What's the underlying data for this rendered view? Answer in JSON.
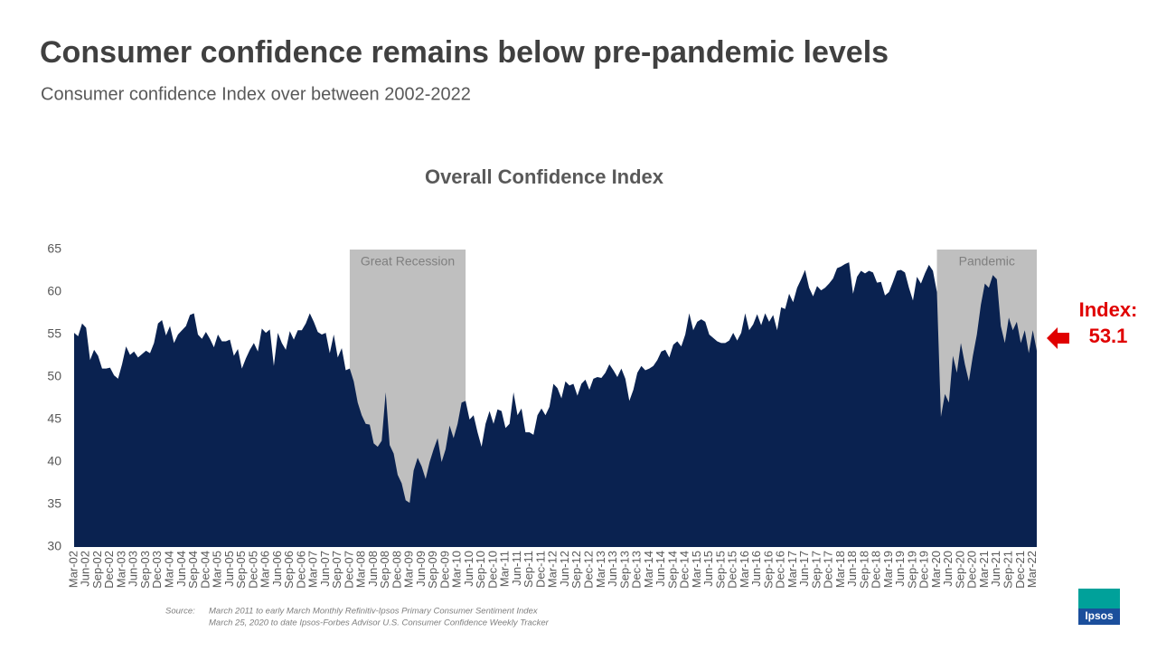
{
  "header": {
    "title": "Consumer confidence remains below pre-pandemic levels",
    "subtitle": "Consumer confidence Index over between 2002-2022"
  },
  "chart_data": {
    "type": "area",
    "title": "Overall Confidence Index",
    "color": "#0a2250",
    "categories": [
      "Mar-02",
      null,
      null,
      "Jun-02",
      null,
      null,
      "Sep-02",
      null,
      null,
      "Dec-02",
      null,
      null,
      "Mar-03",
      null,
      null,
      "Jun-03",
      null,
      null,
      "Sep-03",
      null,
      null,
      "Dec-03",
      null,
      null,
      "Mar-04",
      null,
      null,
      "Jun-04",
      null,
      null,
      "Sep-04",
      null,
      null,
      "Dec-04",
      null,
      null,
      "Mar-05",
      null,
      null,
      "Jun-05",
      null,
      null,
      "Sep-05",
      null,
      null,
      "Dec-05",
      null,
      null,
      "Mar-06",
      null,
      null,
      "Jun-06",
      null,
      null,
      "Sep-06",
      null,
      null,
      "Dec-06",
      null,
      null,
      "Mar-07",
      null,
      null,
      "Jun-07",
      null,
      null,
      "Sep-07",
      null,
      null,
      "Dec-07",
      null,
      null,
      "Mar-08",
      null,
      null,
      "Jun-08",
      null,
      null,
      "Sep-08",
      null,
      null,
      "Dec-08",
      null,
      null,
      "Mar-09",
      null,
      null,
      "Jun-09",
      null,
      null,
      "Sep-09",
      null,
      null,
      "Dec-09",
      null,
      null,
      "Mar-10",
      null,
      null,
      "Jun-10",
      null,
      null,
      "Sep-10",
      null,
      null,
      "Dec-10",
      null,
      null,
      "Mar-11",
      null,
      null,
      "Jun-11",
      null,
      null,
      "Sep-11",
      null,
      null,
      "Dec-11",
      null,
      null,
      "Mar-12",
      null,
      null,
      "Jun-12",
      null,
      null,
      "Sep-12",
      null,
      null,
      "Dec-12",
      null,
      null,
      "Mar-13",
      null,
      null,
      "Jun-13",
      null,
      null,
      "Sep-13",
      null,
      null,
      "Dec-13",
      null,
      null,
      "Mar-14",
      null,
      null,
      "Jun-14",
      null,
      null,
      "Sep-14",
      null,
      null,
      "Dec-14",
      null,
      null,
      "Mar-15",
      null,
      null,
      "Jun-15",
      null,
      null,
      "Sep-15",
      null,
      null,
      "Dec-15",
      null,
      null,
      "Mar-16",
      null,
      null,
      "Jun-16",
      null,
      null,
      "Sep-16",
      null,
      null,
      "Dec-16",
      null,
      null,
      "Mar-17",
      null,
      null,
      "Jun-17",
      null,
      null,
      "Sep-17",
      null,
      null,
      "Dec-17",
      null,
      null,
      "Mar-18",
      null,
      null,
      "Jun-18",
      null,
      null,
      "Sep-18",
      null,
      null,
      "Dec-18",
      null,
      null,
      "Mar-19",
      null,
      null,
      "Jun-19",
      null,
      null,
      "Sep-19",
      null,
      null,
      "Dec-19",
      null,
      null,
      "Mar-20",
      null,
      null,
      "Jun-20",
      null,
      null,
      "Sep-20",
      null,
      null,
      "Dec-20",
      null,
      null,
      "Mar-21",
      null,
      null,
      "Jun-21",
      null,
      null,
      "Sep-21",
      null,
      null,
      "Dec-21",
      null,
      null,
      "Mar-22",
      null
    ],
    "values": [
      55.2,
      54.8,
      56.3,
      55.8,
      52,
      53.2,
      52.5,
      51,
      51,
      51.1,
      50.2,
      49.8,
      51.5,
      53.6,
      52.6,
      53,
      52.3,
      52.7,
      53.1,
      52.8,
      54,
      56.3,
      56.7,
      54.9,
      56,
      54,
      55,
      55.5,
      56,
      57.3,
      57.5,
      55,
      54.5,
      55.3,
      54.5,
      53.5,
      55,
      54.2,
      54.2,
      54.4,
      52.5,
      53.3,
      51,
      52.2,
      53.2,
      54,
      53,
      55.7,
      55.2,
      55.6,
      51.3,
      55.2,
      54,
      53.2,
      55.4,
      54.4,
      55.5,
      55.5,
      56.3,
      57.5,
      56.5,
      55.3,
      55,
      55.2,
      52.8,
      55,
      52.3,
      53.4,
      50.8,
      51,
      49.5,
      47,
      45.5,
      44.5,
      44.4,
      42.2,
      41.8,
      42.5,
      48.2,
      42,
      41,
      38.5,
      37.5,
      35.5,
      35.2,
      39,
      40.5,
      39.5,
      38,
      40,
      41.5,
      42.8,
      40,
      41.5,
      44.3,
      42.8,
      44.5,
      47,
      47.2,
      45,
      45.5,
      43.5,
      41.8,
      44.5,
      46,
      44.5,
      46.2,
      46,
      44,
      44.5,
      48.2,
      45.5,
      46.3,
      43.5,
      43.5,
      43.2,
      45.5,
      46.3,
      45.5,
      46.5,
      49.2,
      48.7,
      47.5,
      49.5,
      49,
      49.2,
      47.8,
      49.2,
      49.7,
      48.5,
      49.8,
      50,
      49.9,
      50.5,
      51.5,
      50.8,
      50,
      51,
      49.8,
      47.2,
      48.5,
      50.5,
      51.3,
      50.8,
      51,
      51.3,
      52,
      53,
      53.2,
      52.3,
      53.8,
      54.2,
      53.6,
      55,
      57.5,
      55.5,
      56.5,
      56.8,
      56.5,
      55,
      54.6,
      54.2,
      54,
      54,
      54.3,
      55.2,
      54.3,
      55.2,
      57.5,
      55.5,
      56.2,
      57.4,
      56.1,
      57.5,
      56.5,
      57.3,
      55.5,
      58.2,
      58,
      59.8,
      58.8,
      60.5,
      61.5,
      62.6,
      60.5,
      59.5,
      60.7,
      60.2,
      60.5,
      61,
      61.6,
      62.8,
      63,
      63.3,
      63.5,
      59.8,
      61.8,
      62.5,
      62.2,
      62.5,
      62.3,
      61.1,
      61.2,
      59.6,
      60,
      61.2,
      62.5,
      62.6,
      62.3,
      60.5,
      59,
      61.8,
      61,
      62.2,
      63.2,
      62.5,
      60,
      45.3,
      48,
      47,
      52.5,
      50.5,
      54,
      51.5,
      49.5,
      52.5,
      55,
      58.5,
      61,
      60.5,
      62,
      61.5,
      56,
      54,
      57,
      55.5,
      56.5,
      54,
      55.5,
      52.8,
      55.5,
      53.1
    ],
    "ylim": [
      30,
      65
    ],
    "yticks": [
      30,
      35,
      40,
      45,
      50,
      55,
      60,
      65
    ],
    "grid": false,
    "shaded_regions": [
      {
        "label": "Great Recession",
        "start": 69,
        "end": 98,
        "color": "#bfbfbf"
      },
      {
        "label": "Pandemic",
        "start": 216,
        "end": 241,
        "color": "#bfbfbf"
      }
    ],
    "callout": {
      "text": "Index:",
      "value": 53.1,
      "color": "#e00000"
    }
  },
  "source": {
    "label": "Source:",
    "lines": [
      "March 2011 to early March Monthly Refinitiv-Ipsos Primary Consumer Sentiment Index",
      "March 25, 2020 to date Ipsos-Forbes Advisor U.S. Consumer Confidence Weekly Tracker"
    ]
  },
  "logo": "Ipsos"
}
